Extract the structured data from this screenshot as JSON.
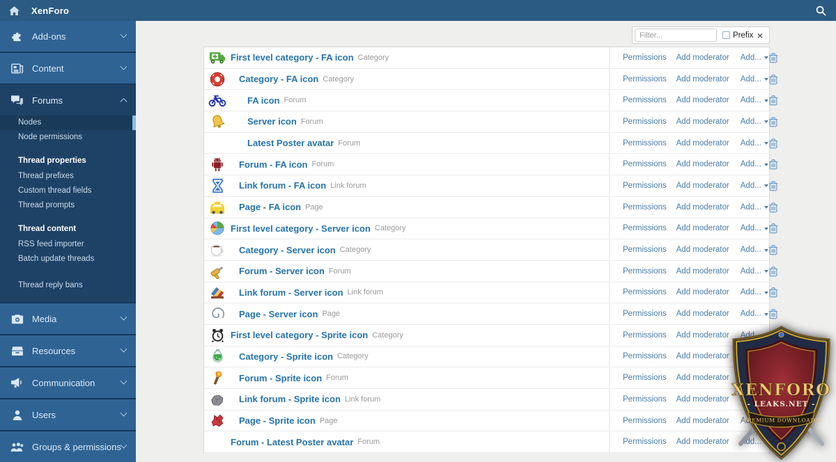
{
  "colors": {
    "topbar-bg": "#2b5a83",
    "sidebar-bg": "#16385a",
    "section-bg": "#2f6394",
    "section-open-bg": "#1e4265",
    "active-item-bg": "#193a58",
    "active-indicator": "#8abde4",
    "sidebar-text": "#dce9f5",
    "subitem-text": "#c9dcec",
    "content-bg": "#efefee",
    "title-link": "#2673ab",
    "action-link": "#4a7da9",
    "type-label": "#999999",
    "row-border": "#ececec"
  },
  "topbar": {
    "brand": "XenForo"
  },
  "sidebar": {
    "sections": [
      {
        "label": "Add-ons",
        "icon": "puzzle",
        "expanded": false
      },
      {
        "label": "Content",
        "icon": "newspaper",
        "expanded": false
      },
      {
        "label": "Forums",
        "icon": "comments",
        "expanded": true,
        "items": [
          {
            "label": "Nodes",
            "kind": "link",
            "active": true
          },
          {
            "label": "Node permissions",
            "kind": "link"
          },
          {
            "label": "Thread properties",
            "kind": "header"
          },
          {
            "label": "Thread prefixes",
            "kind": "link"
          },
          {
            "label": "Custom thread fields",
            "kind": "link"
          },
          {
            "label": "Thread prompts",
            "kind": "link"
          },
          {
            "label": "Thread content",
            "kind": "header"
          },
          {
            "label": "RSS feed importer",
            "kind": "link"
          },
          {
            "label": "Batch update threads",
            "kind": "link"
          },
          {
            "label": "Thread reply bans",
            "kind": "link",
            "spaced": true
          }
        ]
      },
      {
        "label": "Media",
        "icon": "camera",
        "expanded": false
      },
      {
        "label": "Resources",
        "icon": "archive",
        "expanded": false
      },
      {
        "label": "Communication",
        "icon": "megaphone",
        "expanded": false
      },
      {
        "label": "Users",
        "icon": "user",
        "expanded": false
      },
      {
        "label": "Groups & permissions",
        "icon": "users",
        "expanded": false
      }
    ]
  },
  "filter": {
    "placeholder": "Filter...",
    "prefix_label": "Prefix",
    "prefix_checked": false
  },
  "node_list": {
    "row_actions": {
      "permissions": "Permissions",
      "add_moderator": "Add moderator",
      "add_dropdown": "Add...",
      "delete_icon": "trash-icon"
    },
    "rows": [
      {
        "icon": "ambulance",
        "title": "First level category - FA icon",
        "type": "Category",
        "depth": 0
      },
      {
        "icon": "life-ring",
        "title": "Category - FA icon",
        "type": "Category",
        "depth": 1
      },
      {
        "icon": "motorcycle",
        "title": "FA icon",
        "type": "Forum",
        "depth": 2
      },
      {
        "icon": "bell",
        "title": "Server icon",
        "type": "Forum",
        "depth": 2
      },
      {
        "icon": null,
        "title": "Latest Poster avatar",
        "type": "Forum",
        "depth": 2
      },
      {
        "icon": "android",
        "title": "Forum - FA icon",
        "type": "Forum",
        "depth": 1
      },
      {
        "icon": "hourglass",
        "title": "Link forum - FA icon",
        "type": "Link forum",
        "depth": 1
      },
      {
        "icon": "taxi",
        "title": "Page - FA icon",
        "type": "Page",
        "depth": 1
      },
      {
        "icon": "pie-chart",
        "title": "First level category - Server icon",
        "type": "Category",
        "depth": 0
      },
      {
        "icon": "coffee-cup",
        "title": "Category - Server icon",
        "type": "Category",
        "depth": 1
      },
      {
        "icon": "drill",
        "title": "Forum - Server icon",
        "type": "Forum",
        "depth": 1
      },
      {
        "icon": "palette",
        "title": "Link forum - Server icon",
        "type": "Link forum",
        "depth": 1
      },
      {
        "icon": "spiral",
        "title": "Page - Server icon",
        "type": "Page",
        "depth": 1
      },
      {
        "icon": "alarm-clock",
        "title": "First level category - Sprite icon",
        "type": "Category",
        "depth": 0
      },
      {
        "icon": "potion",
        "title": "Category - Sprite icon",
        "type": "Category",
        "depth": 1
      },
      {
        "icon": "torch",
        "title": "Forum - Sprite icon",
        "type": "Forum",
        "depth": 1
      },
      {
        "icon": "rock",
        "title": "Link forum - Sprite icon",
        "type": "Link forum",
        "depth": 1
      },
      {
        "icon": "gem",
        "title": "Page - Sprite icon",
        "type": "Page",
        "depth": 1
      },
      {
        "icon": null,
        "title": "Forum - Latest Poster avatar",
        "type": "Forum",
        "depth": 0
      }
    ]
  },
  "watermark": {
    "title": "XENFORO",
    "subtitle": "- LEAKS.NET -",
    "banner": "· PREMIUM DOWNLOADS ·"
  }
}
